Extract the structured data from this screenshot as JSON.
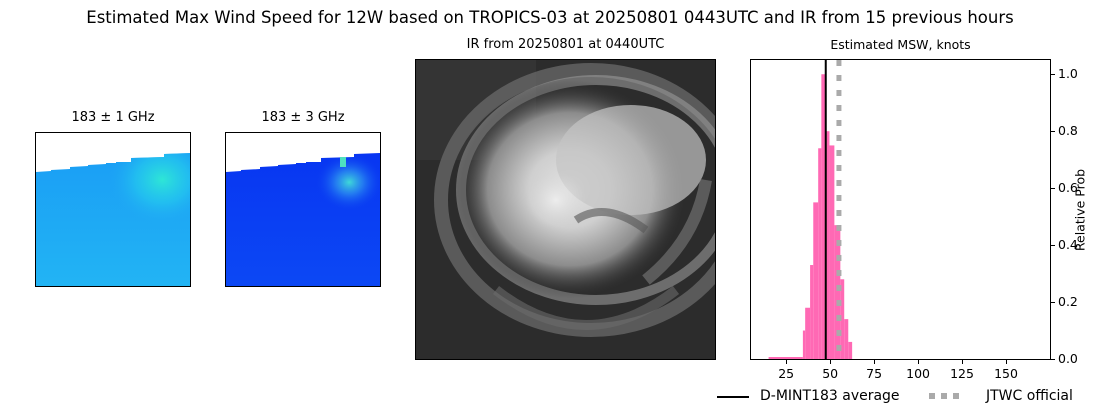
{
  "figure": {
    "suptitle": "Estimated Max Wind Speed for 12W based on TROPICS-03 at 20250801 0443UTC and IR from 15 previous hours"
  },
  "panels": {
    "mw_1": {
      "title": "183 ± 1 GHz",
      "base_color": "#1fa6f5",
      "hot_color": "#2ee6d6"
    },
    "mw_3": {
      "title": "183 ± 3 GHz",
      "base_color": "#0a3af2",
      "hot_color": "#3fd8d8"
    },
    "ir": {
      "title": "IR from 20250801 at 0440UTC"
    }
  },
  "chart_data": {
    "type": "bar",
    "title": "Estimated MSW, knots",
    "xlabel": "",
    "ylabel": "Relative Prob",
    "xlim": [
      5,
      175
    ],
    "ylim": [
      0,
      1.05
    ],
    "xticks": [
      25,
      50,
      75,
      100,
      125,
      150
    ],
    "yticks": [
      0.0,
      0.2,
      0.4,
      0.6,
      0.8,
      1.0
    ],
    "xtick_labels": [
      "25",
      "50",
      "75",
      "100",
      "125",
      "150"
    ],
    "ytick_labels": [
      "0.0",
      "0.2",
      "0.4",
      "0.6",
      "0.8",
      "1.0"
    ],
    "y_axis_side": "right",
    "bar_color": "#ff69b4",
    "bins": [
      {
        "x0": 15,
        "x1": 34.5,
        "value": 0.007
      },
      {
        "x0": 34.5,
        "x1": 35.8,
        "value": 0.1
      },
      {
        "x0": 35.8,
        "x1": 38.6,
        "value": 0.18
      },
      {
        "x0": 38.6,
        "x1": 40.4,
        "value": 0.33
      },
      {
        "x0": 40.4,
        "x1": 43.2,
        "value": 0.55
      },
      {
        "x0": 43.2,
        "x1": 45.0,
        "value": 0.74
      },
      {
        "x0": 45.0,
        "x1": 47.3,
        "value": 1.0
      },
      {
        "x0": 47.3,
        "x1": 47.9,
        "value": 0.87
      },
      {
        "x0": 47.9,
        "x1": 49.6,
        "value": 0.8
      },
      {
        "x0": 49.6,
        "x1": 52.4,
        "value": 0.75
      },
      {
        "x0": 52.4,
        "x1": 55.8,
        "value": 0.47
      },
      {
        "x0": 55.8,
        "x1": 58.0,
        "value": 0.28
      },
      {
        "x0": 58.0,
        "x1": 60.3,
        "value": 0.14
      },
      {
        "x0": 60.3,
        "x1": 62.5,
        "value": 0.06
      }
    ],
    "vlines": [
      {
        "name": "D-MINT183 average",
        "x": 47.5,
        "color": "#000000",
        "style": "solid"
      },
      {
        "name": "JTWC official",
        "x": 55,
        "color": "#aaaaaa",
        "style": "dotted"
      }
    ],
    "legend": {
      "position": "below",
      "entries": [
        "D-MINT183 average",
        "JTWC official"
      ]
    }
  }
}
